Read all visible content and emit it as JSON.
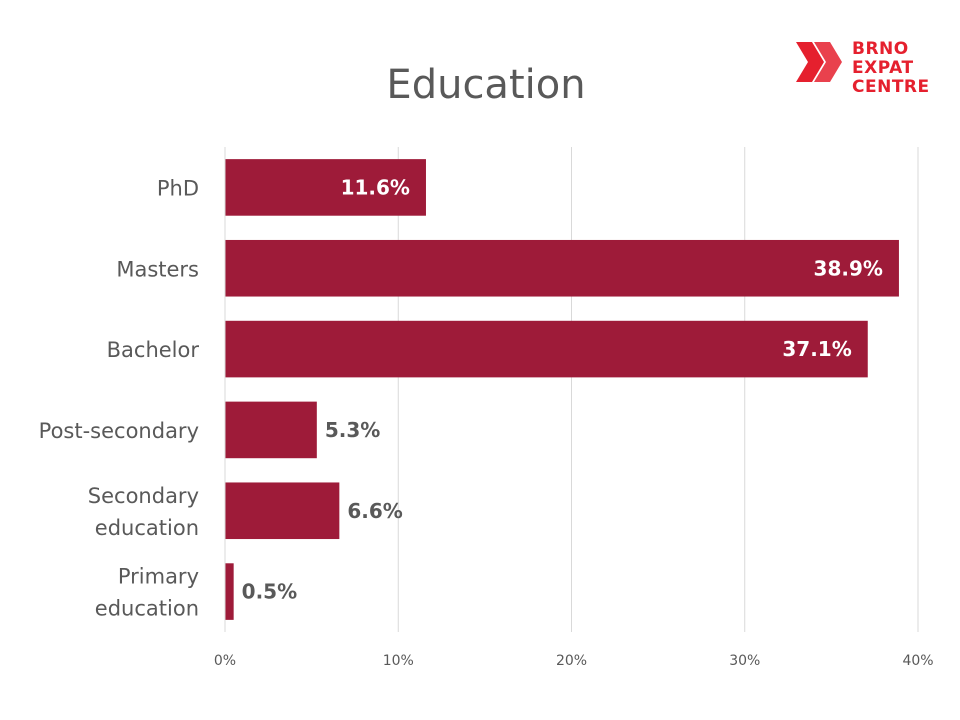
{
  "chart_data": {
    "type": "bar",
    "orientation": "horizontal",
    "title": "Education",
    "categories": [
      [
        "PhD"
      ],
      [
        "Masters"
      ],
      [
        "Bachelor"
      ],
      [
        "Post-secondary"
      ],
      [
        "Secondary",
        "education"
      ],
      [
        "Primary",
        "education"
      ]
    ],
    "values": [
      11.6,
      38.9,
      37.1,
      5.3,
      6.6,
      0.5
    ],
    "data_labels": [
      "11.6%",
      "38.9%",
      "37.1%",
      "5.3%",
      "6.6%",
      "0.5%"
    ],
    "xticks": [
      "0%",
      "10%",
      "20%",
      "30%",
      "40%"
    ],
    "xlim": [
      0,
      40
    ],
    "grid": true,
    "bar_color": "#9e1b39"
  },
  "logo": {
    "lines": [
      "BRNO",
      "EXPAT",
      "CENTRE"
    ],
    "color": "#e5202e"
  }
}
